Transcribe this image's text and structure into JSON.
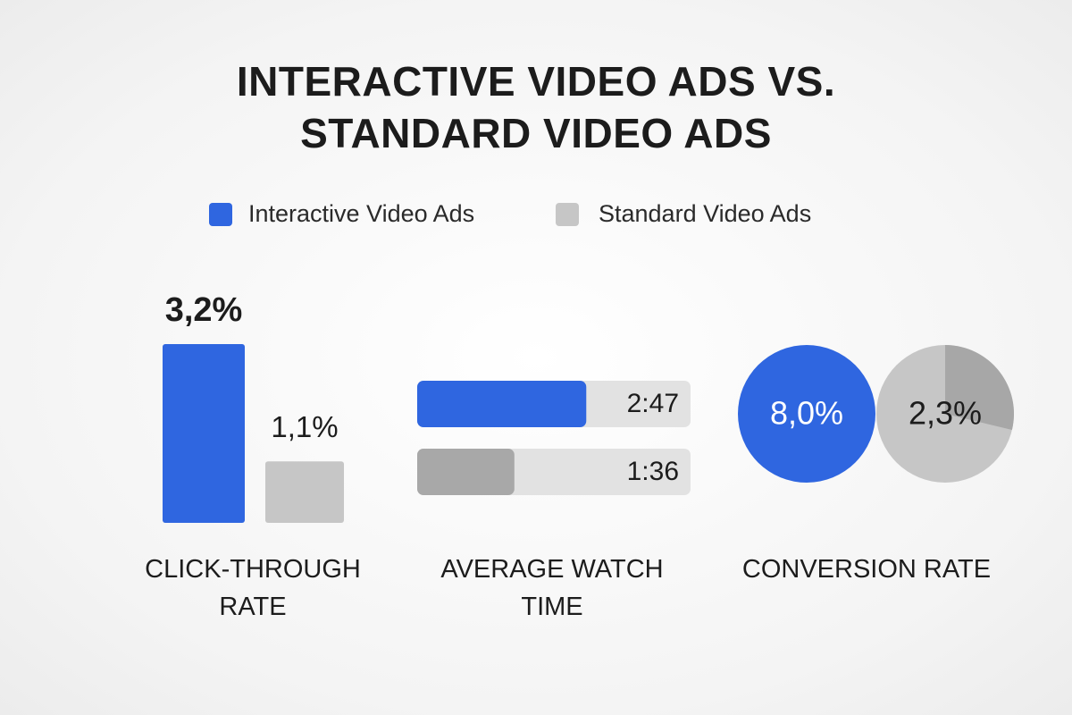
{
  "title": "INTERACTIVE VIDEO ADS VS. STANDARD VIDEO ADS",
  "legend": [
    {
      "name": "Interactive Video Ads",
      "color": "#2f66e0"
    },
    {
      "name": "Standard Video Ads",
      "color": "#c6c6c6"
    }
  ],
  "chart_data": [
    {
      "type": "bar",
      "title": "CLICK-THROUGH RATE",
      "values": [
        3.2,
        1.1
      ],
      "value_labels": [
        "3,2%",
        "1,1%"
      ]
    },
    {
      "type": "progress",
      "title": "AVERAGE WATCH TIME",
      "values": [
        167,
        96
      ],
      "value_labels": [
        "2:47",
        "1:36"
      ],
      "xlim": [
        0,
        270
      ]
    },
    {
      "type": "pie",
      "title": "CONVERSION RATE",
      "values": [
        8.0,
        2.3
      ],
      "value_labels": [
        "8,0%",
        "2,3%"
      ]
    }
  ]
}
